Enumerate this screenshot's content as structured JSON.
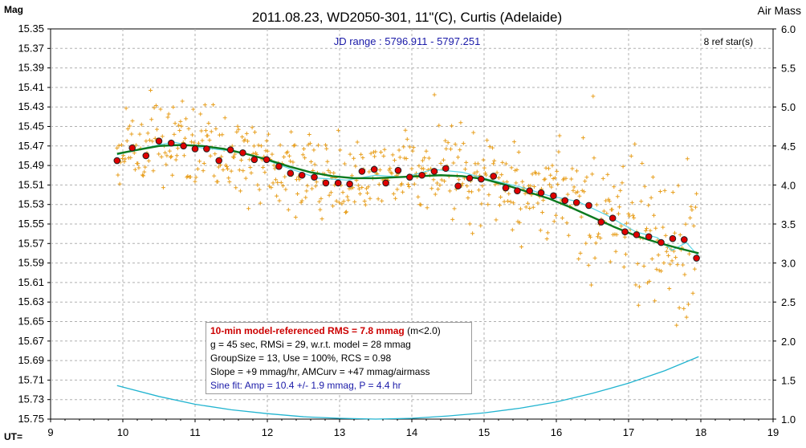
{
  "chart_data": {
    "type": "scatter",
    "title": "2011.08.23, WD2050-301, 11\"(C), Curtis (Adelaide)",
    "subtitle": "JD range : 5796.911 - 5797.251",
    "ref_stars": "8 ref star(s)",
    "ylabel": "Mag",
    "ylabel_right": "Air Mass",
    "xlabel": "UT=",
    "xlim": [
      9,
      19
    ],
    "ylim": [
      15.75,
      15.35
    ],
    "ylim_right": [
      1.0,
      6.0
    ],
    "x_ticks": [
      "9",
      "10",
      "11",
      "12",
      "13",
      "14",
      "15",
      "16",
      "17",
      "18",
      "19"
    ],
    "y_ticks": [
      "15.35",
      "15.37",
      "15.39",
      "15.41",
      "15.43",
      "15.45",
      "15.47",
      "15.49",
      "15.51",
      "15.53",
      "15.55",
      "15.57",
      "15.59",
      "15.61",
      "15.63",
      "15.65",
      "15.67",
      "15.69",
      "15.71",
      "15.73",
      "15.75"
    ],
    "y_ticks_right": [
      "6.0",
      "5.5",
      "5.0",
      "4.5",
      "4.0",
      "3.5",
      "3.0",
      "2.5",
      "2.0",
      "1.5",
      "1.0"
    ],
    "grid": true,
    "colors": {
      "raw": "#e8a020",
      "binned_fill": "#e00000",
      "binned_edge": "#202020",
      "model": "#0a7a1e",
      "running": "#5ad6e6",
      "airmass": "#22b4d0",
      "grid": "#b0b0b0"
    },
    "series": [
      {
        "name": "10-min averages",
        "x": [
          9.92,
          10.13,
          10.32,
          10.5,
          10.67,
          10.84,
          11.0,
          11.16,
          11.33,
          11.49,
          11.66,
          11.82,
          11.99,
          12.16,
          12.32,
          12.48,
          12.65,
          12.81,
          12.98,
          13.14,
          13.31,
          13.48,
          13.64,
          13.81,
          13.97,
          14.14,
          14.31,
          14.47,
          14.64,
          14.8,
          14.96,
          15.13,
          15.3,
          15.46,
          15.63,
          15.79,
          15.96,
          16.12,
          16.28,
          16.45,
          16.62,
          16.78,
          16.95,
          17.11,
          17.28,
          17.45,
          17.61,
          17.77,
          17.94
        ],
        "y": [
          15.485,
          15.472,
          15.48,
          15.465,
          15.467,
          15.47,
          15.473,
          15.473,
          15.485,
          15.474,
          15.477,
          15.484,
          15.484,
          15.491,
          15.498,
          15.5,
          15.502,
          15.508,
          15.508,
          15.509,
          15.496,
          15.494,
          15.508,
          15.495,
          15.502,
          15.5,
          15.496,
          15.493,
          15.511,
          15.503,
          15.504,
          15.501,
          15.513,
          15.516,
          15.516,
          15.518,
          15.521,
          15.526,
          15.528,
          15.531,
          15.548,
          15.544,
          15.558,
          15.561,
          15.563,
          15.569,
          15.565,
          15.566,
          15.585
        ]
      },
      {
        "name": "Model fit",
        "x": [
          9.92,
          10.2,
          10.5,
          10.8,
          11.1,
          11.4,
          11.7,
          12.0,
          12.3,
          12.6,
          12.9,
          13.2,
          13.5,
          13.8,
          14.1,
          14.4,
          14.7,
          15.0,
          15.3,
          15.6,
          15.9,
          16.2,
          16.5,
          16.8,
          17.1,
          17.4,
          17.7,
          17.97
        ],
        "y": [
          15.478,
          15.474,
          15.47,
          15.469,
          15.47,
          15.473,
          15.478,
          15.484,
          15.491,
          15.497,
          15.501,
          15.503,
          15.503,
          15.502,
          15.501,
          15.5,
          15.501,
          15.504,
          15.51,
          15.517,
          15.524,
          15.533,
          15.543,
          15.553,
          15.562,
          15.569,
          15.575,
          15.58
        ]
      },
      {
        "name": "Running average",
        "x": [
          9.92,
          10.3,
          10.7,
          11.1,
          11.5,
          11.9,
          12.3,
          12.7,
          13.1,
          13.5,
          13.9,
          14.3,
          14.7,
          15.1,
          15.5,
          15.9,
          16.3,
          16.7,
          17.1,
          17.4,
          17.6,
          17.8,
          17.97
        ],
        "y": [
          15.479,
          15.472,
          15.466,
          15.472,
          15.475,
          15.482,
          15.493,
          15.503,
          15.505,
          15.5,
          15.502,
          15.494,
          15.497,
          15.505,
          15.512,
          15.521,
          15.527,
          15.541,
          15.558,
          15.564,
          15.577,
          15.569,
          15.583
        ]
      },
      {
        "name": "Air mass",
        "axis": "right",
        "x": [
          9.92,
          10.5,
          11.0,
          11.5,
          12.0,
          12.5,
          13.0,
          13.5,
          14.0,
          14.5,
          15.0,
          15.5,
          16.0,
          16.5,
          17.0,
          17.5,
          17.97
        ],
        "y": [
          1.43,
          1.29,
          1.19,
          1.12,
          1.07,
          1.03,
          1.01,
          1.0,
          1.01,
          1.04,
          1.08,
          1.14,
          1.22,
          1.33,
          1.46,
          1.62,
          1.8
        ]
      }
    ]
  },
  "info": {
    "rms_line": "10-min model-referenced RMS = 7.8 mmag",
    "rms_cond": "(m<2.0)",
    "line2": "g = 45 sec, RMSi = 29, w.r.t. model = 28 mmag",
    "line3": "GroupSize = 13, Use = 100%, RCS = 0.98",
    "line4": "Slope = +9 mmag/hr, AMCurv = +47 mmag/airmass",
    "line5": "Sine fit: Amp = 10.4 +/- 1.9 mmag, P = 4.4 hr"
  }
}
